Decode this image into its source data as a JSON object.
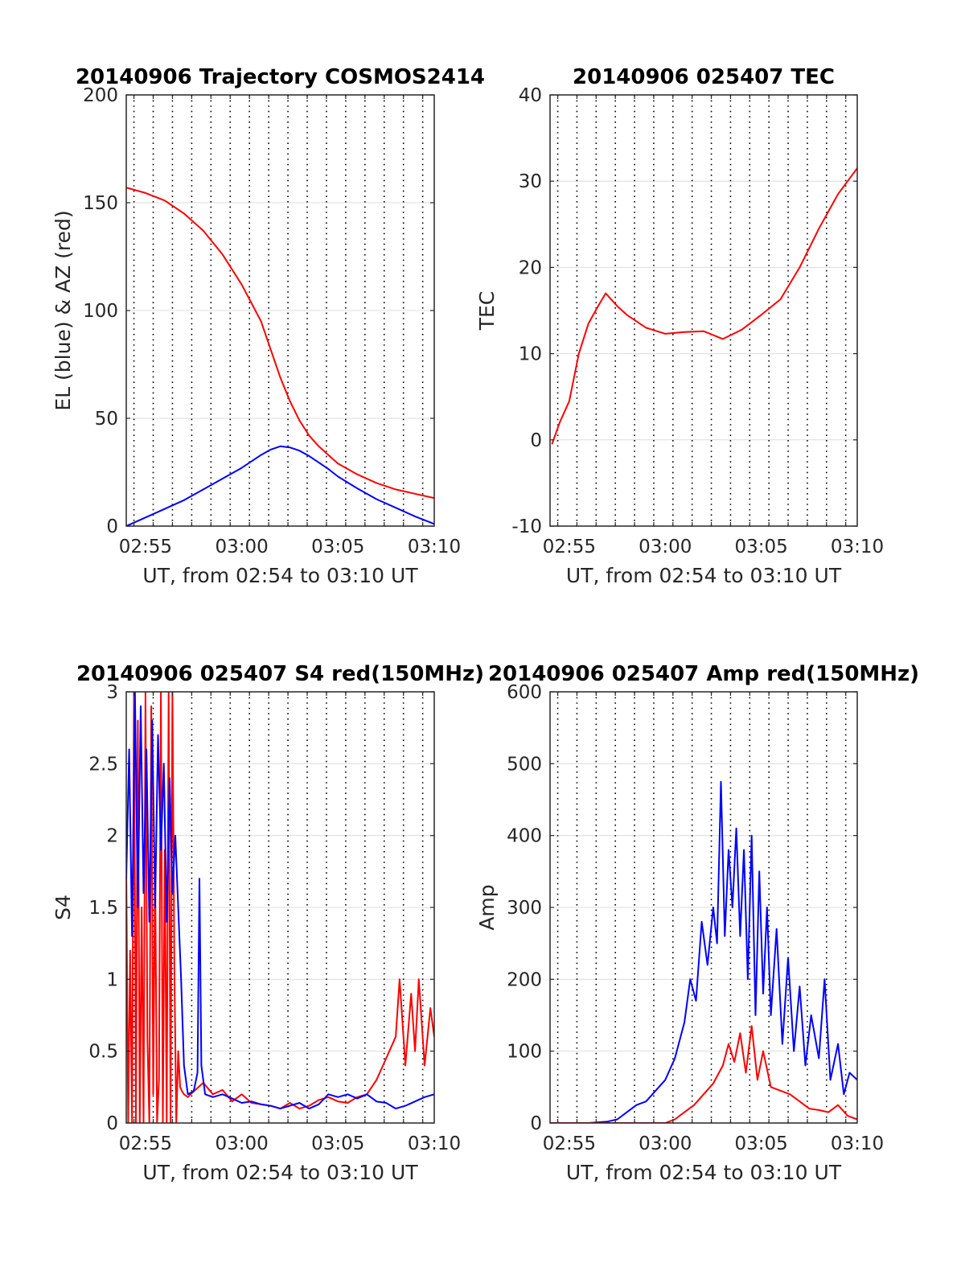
{
  "chart_data": [
    {
      "type": "line",
      "title": "20140906 Trajectory COSMOS2414",
      "xlabel": "UT, from 02:54 to 03:10 UT",
      "ylabel": "EL (blue) & AZ (red)",
      "xlim": [
        0,
        16
      ],
      "ylim": [
        0,
        200
      ],
      "xticks": [
        {
          "v": 1,
          "label": "02:55"
        },
        {
          "v": 6,
          "label": "03:00"
        },
        {
          "v": 11,
          "label": "03:05"
        },
        {
          "v": 16,
          "label": "03:10"
        }
      ],
      "yticks": [
        {
          "v": 0,
          "label": "0"
        },
        {
          "v": 50,
          "label": "50"
        },
        {
          "v": 100,
          "label": "100"
        },
        {
          "v": 150,
          "label": "150"
        },
        {
          "v": 200,
          "label": "200"
        }
      ],
      "grid": true,
      "series": [
        {
          "color": "#ff0000",
          "x": [
            0,
            1,
            2,
            3,
            4,
            5,
            6,
            7,
            7.5,
            8,
            8.5,
            9,
            9.5,
            10,
            10.5,
            11,
            12,
            13,
            14,
            15,
            16
          ],
          "y": [
            157,
            154.5,
            151,
            145,
            137,
            126,
            112,
            95,
            82,
            69,
            58,
            49,
            42,
            37,
            33,
            29,
            24,
            20,
            17,
            15,
            13
          ]
        },
        {
          "color": "#0000ff",
          "x": [
            0,
            1,
            2,
            3,
            4,
            5,
            6,
            7,
            7.5,
            8,
            8.5,
            9,
            9.5,
            10,
            10.5,
            11,
            12,
            13,
            14,
            15,
            16
          ],
          "y": [
            0,
            4,
            8,
            12,
            17,
            22,
            27,
            33,
            35.5,
            37,
            36.5,
            35,
            32.5,
            29.5,
            26.5,
            23,
            17.5,
            12.5,
            8.5,
            4.5,
            1
          ]
        }
      ]
    },
    {
      "type": "line",
      "title": "20140906 025407 TEC",
      "xlabel": "UT, from 02:54 to 03:10 UT",
      "ylabel": "TEC",
      "xlim": [
        0,
        16
      ],
      "ylim": [
        -10,
        40
      ],
      "xticks": [
        {
          "v": 1,
          "label": "02:55"
        },
        {
          "v": 6,
          "label": "03:00"
        },
        {
          "v": 11,
          "label": "03:05"
        },
        {
          "v": 16,
          "label": "03:10"
        }
      ],
      "yticks": [
        {
          "v": -10,
          "label": "-10"
        },
        {
          "v": 0,
          "label": "0"
        },
        {
          "v": 10,
          "label": "10"
        },
        {
          "v": 20,
          "label": "20"
        },
        {
          "v": 30,
          "label": "30"
        },
        {
          "v": 40,
          "label": "40"
        }
      ],
      "grid": true,
      "series": [
        {
          "color": "#ff0000",
          "x": [
            0.1,
            0.5,
            1,
            1.5,
            2,
            2.5,
            2.9,
            3.5,
            4,
            5,
            6,
            7,
            8,
            9,
            10,
            11,
            12,
            13,
            14,
            15,
            16
          ],
          "y": [
            -0.5,
            2,
            4.5,
            10,
            13.5,
            15.5,
            17,
            15.5,
            14.5,
            13,
            12.3,
            12.5,
            12.6,
            11.7,
            12.8,
            14.5,
            16.3,
            20,
            24.5,
            28.5,
            31.5
          ]
        }
      ]
    },
    {
      "type": "line",
      "title": "20140906 025407 S4 red(150MHz)",
      "xlabel": "UT, from 02:54 to 03:10 UT",
      "ylabel": "S4",
      "xlim": [
        0,
        16
      ],
      "ylim": [
        0,
        3
      ],
      "xticks": [
        {
          "v": 1,
          "label": "02:55"
        },
        {
          "v": 6,
          "label": "03:00"
        },
        {
          "v": 11,
          "label": "03:05"
        },
        {
          "v": 16,
          "label": "03:10"
        }
      ],
      "yticks": [
        {
          "v": 0,
          "label": "0"
        },
        {
          "v": 0.5,
          "label": "0.5"
        },
        {
          "v": 1,
          "label": "1"
        },
        {
          "v": 1.5,
          "label": "1.5"
        },
        {
          "v": 2,
          "label": "2"
        },
        {
          "v": 2.5,
          "label": "2.5"
        },
        {
          "v": 3,
          "label": "3"
        }
      ],
      "grid": true,
      "series": [
        {
          "color": "#ff0000",
          "x": [
            0,
            0.1,
            0.2,
            0.3,
            0.4,
            0.5,
            0.6,
            0.7,
            0.8,
            0.9,
            1.0,
            1.1,
            1.2,
            1.3,
            1.4,
            1.5,
            1.6,
            1.7,
            1.8,
            1.9,
            2.0,
            2.1,
            2.2,
            2.3,
            2.4,
            2.5,
            2.6,
            2.7,
            2.8,
            2.9,
            3.0,
            3.2,
            3.5,
            4,
            4.5,
            5,
            5.5,
            6,
            6.5,
            7,
            7.5,
            8,
            8.5,
            9,
            9.5,
            10,
            10.5,
            11,
            11.5,
            12,
            12.5,
            13,
            13.5,
            14,
            14.2,
            14.5,
            14.8,
            15,
            15.2,
            15.5,
            15.8,
            16
          ],
          "y": [
            1.8,
            0,
            1.2,
            0,
            3,
            0,
            2.8,
            0,
            1.5,
            0,
            3,
            0.6,
            0,
            2.9,
            0.2,
            1.8,
            0,
            0.3,
            3,
            0,
            1.9,
            0,
            3,
            0,
            3,
            1.1,
            0,
            0.5,
            0.25,
            0.22,
            0.2,
            0.18,
            0.22,
            0.28,
            0.2,
            0.23,
            0.15,
            0.2,
            0.14,
            0.13,
            0.12,
            0.1,
            0.14,
            0.1,
            0.12,
            0.16,
            0.18,
            0.15,
            0.14,
            0.18,
            0.2,
            0.3,
            0.45,
            0.6,
            1.0,
            0.4,
            0.9,
            0.5,
            1.0,
            0.4,
            0.8,
            0.6
          ]
        },
        {
          "color": "#0000ff",
          "x": [
            0,
            0.15,
            0.3,
            0.45,
            0.6,
            0.75,
            0.9,
            1.05,
            1.2,
            1.35,
            1.5,
            1.65,
            1.8,
            1.95,
            2.1,
            2.25,
            2.4,
            2.55,
            2.7,
            2.85,
            3.0,
            3.2,
            3.5,
            3.7,
            3.8,
            3.9,
            4.1,
            4.5,
            5,
            5.5,
            6,
            6.5,
            7,
            7.5,
            8,
            8.5,
            9,
            9.5,
            10,
            10.5,
            11,
            11.5,
            12,
            12.5,
            13,
            13.5,
            14,
            14.5,
            15,
            15.5,
            16
          ],
          "y": [
            1.7,
            2.6,
            1.3,
            3,
            1.5,
            2.9,
            1.6,
            2.6,
            1.4,
            2.8,
            1.5,
            2.7,
            1.9,
            2.5,
            1.4,
            2.4,
            1.6,
            2.0,
            1.5,
            1.0,
            0.4,
            0.2,
            0.22,
            0.35,
            1.7,
            0.4,
            0.2,
            0.18,
            0.2,
            0.17,
            0.14,
            0.15,
            0.13,
            0.12,
            0.1,
            0.12,
            0.14,
            0.1,
            0.13,
            0.2,
            0.18,
            0.2,
            0.17,
            0.2,
            0.15,
            0.14,
            0.1,
            0.12,
            0.15,
            0.18,
            0.2
          ]
        }
      ]
    },
    {
      "type": "line",
      "title": "20140906 025407 Amp red(150MHz)",
      "xlabel": "UT, from 02:54 to 03:10 UT",
      "ylabel": "Amp",
      "xlim": [
        0,
        16
      ],
      "ylim": [
        0,
        600
      ],
      "xticks": [
        {
          "v": 1,
          "label": "02:55"
        },
        {
          "v": 6,
          "label": "03:00"
        },
        {
          "v": 11,
          "label": "03:05"
        },
        {
          "v": 16,
          "label": "03:10"
        }
      ],
      "yticks": [
        {
          "v": 0,
          "label": "0"
        },
        {
          "v": 100,
          "label": "100"
        },
        {
          "v": 200,
          "label": "200"
        },
        {
          "v": 300,
          "label": "300"
        },
        {
          "v": 400,
          "label": "400"
        },
        {
          "v": 500,
          "label": "500"
        },
        {
          "v": 600,
          "label": "600"
        }
      ],
      "grid": true,
      "series": [
        {
          "color": "#0000ff",
          "x": [
            0,
            1,
            2,
            3,
            3.5,
            4,
            4.5,
            5,
            5.5,
            6,
            6.5,
            7,
            7.3,
            7.6,
            7.9,
            8.2,
            8.5,
            8.7,
            8.9,
            9.1,
            9.3,
            9.5,
            9.7,
            9.9,
            10.1,
            10.3,
            10.5,
            10.7,
            10.9,
            11.1,
            11.3,
            11.5,
            11.8,
            12.1,
            12.4,
            12.7,
            13,
            13.3,
            13.6,
            14,
            14.3,
            14.6,
            15,
            15.3,
            15.6,
            16
          ],
          "y": [
            0,
            0,
            0,
            2,
            5,
            15,
            25,
            30,
            45,
            60,
            90,
            140,
            200,
            170,
            280,
            220,
            300,
            250,
            475,
            260,
            380,
            300,
            410,
            260,
            380,
            200,
            400,
            150,
            350,
            180,
            300,
            150,
            270,
            110,
            230,
            100,
            190,
            80,
            150,
            90,
            200,
            60,
            110,
            40,
            70,
            60
          ]
        },
        {
          "color": "#ff0000",
          "x": [
            0,
            6,
            6.5,
            7,
            7.5,
            8,
            8.5,
            9,
            9.3,
            9.6,
            9.9,
            10.2,
            10.5,
            10.8,
            11.1,
            11.5,
            12,
            12.5,
            13,
            13.5,
            14,
            14.5,
            15,
            15.5,
            16
          ],
          "y": [
            0,
            0,
            5,
            15,
            25,
            40,
            55,
            80,
            110,
            85,
            125,
            70,
            135,
            60,
            100,
            50,
            45,
            40,
            30,
            20,
            18,
            15,
            25,
            10,
            5
          ]
        }
      ]
    }
  ]
}
